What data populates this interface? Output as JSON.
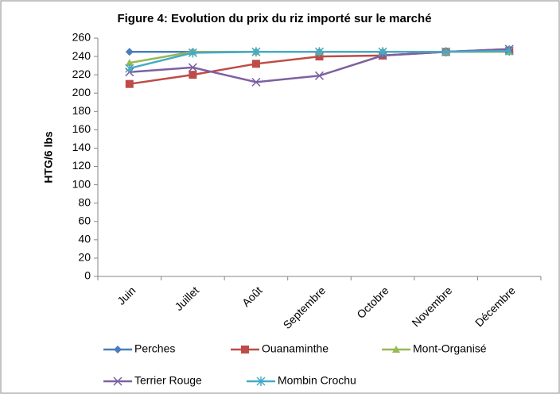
{
  "chart_data": {
    "type": "line",
    "title": "Figure 4: Evolution du prix du riz importé sur le marché",
    "y_label": "HTG/6 lbs",
    "categories": [
      "Juin",
      "Juillet",
      "Août",
      "Septembre",
      "Octobre",
      "Novembre",
      "Décembre"
    ],
    "series": [
      {
        "name": "Perches",
        "color": "#4a7ebb",
        "marker": "diamond",
        "values": [
          245,
          245,
          245,
          245,
          245,
          245,
          248
        ]
      },
      {
        "name": "Ouanaminthe",
        "color": "#be4b48",
        "marker": "square",
        "values": [
          210,
          220,
          232,
          240,
          241,
          245,
          246
        ]
      },
      {
        "name": "Mont-Organisé",
        "color": "#98b954",
        "marker": "triangle",
        "values": [
          233,
          245,
          245,
          245,
          245,
          245,
          245
        ]
      },
      {
        "name": "Terrier Rouge",
        "color": "#7d60a0",
        "marker": "x",
        "values": [
          223,
          228,
          212,
          219,
          241,
          245,
          248
        ]
      },
      {
        "name": "Mombin Crochu",
        "color": "#46aac5",
        "marker": "star",
        "values": [
          227,
          244,
          245,
          245,
          245,
          245,
          246
        ]
      }
    ],
    "ylim": [
      0,
      260
    ],
    "yticks": [
      0,
      20,
      40,
      60,
      80,
      100,
      120,
      140,
      160,
      180,
      200,
      220,
      240,
      260
    ],
    "grid": false,
    "legend": "bottom"
  }
}
